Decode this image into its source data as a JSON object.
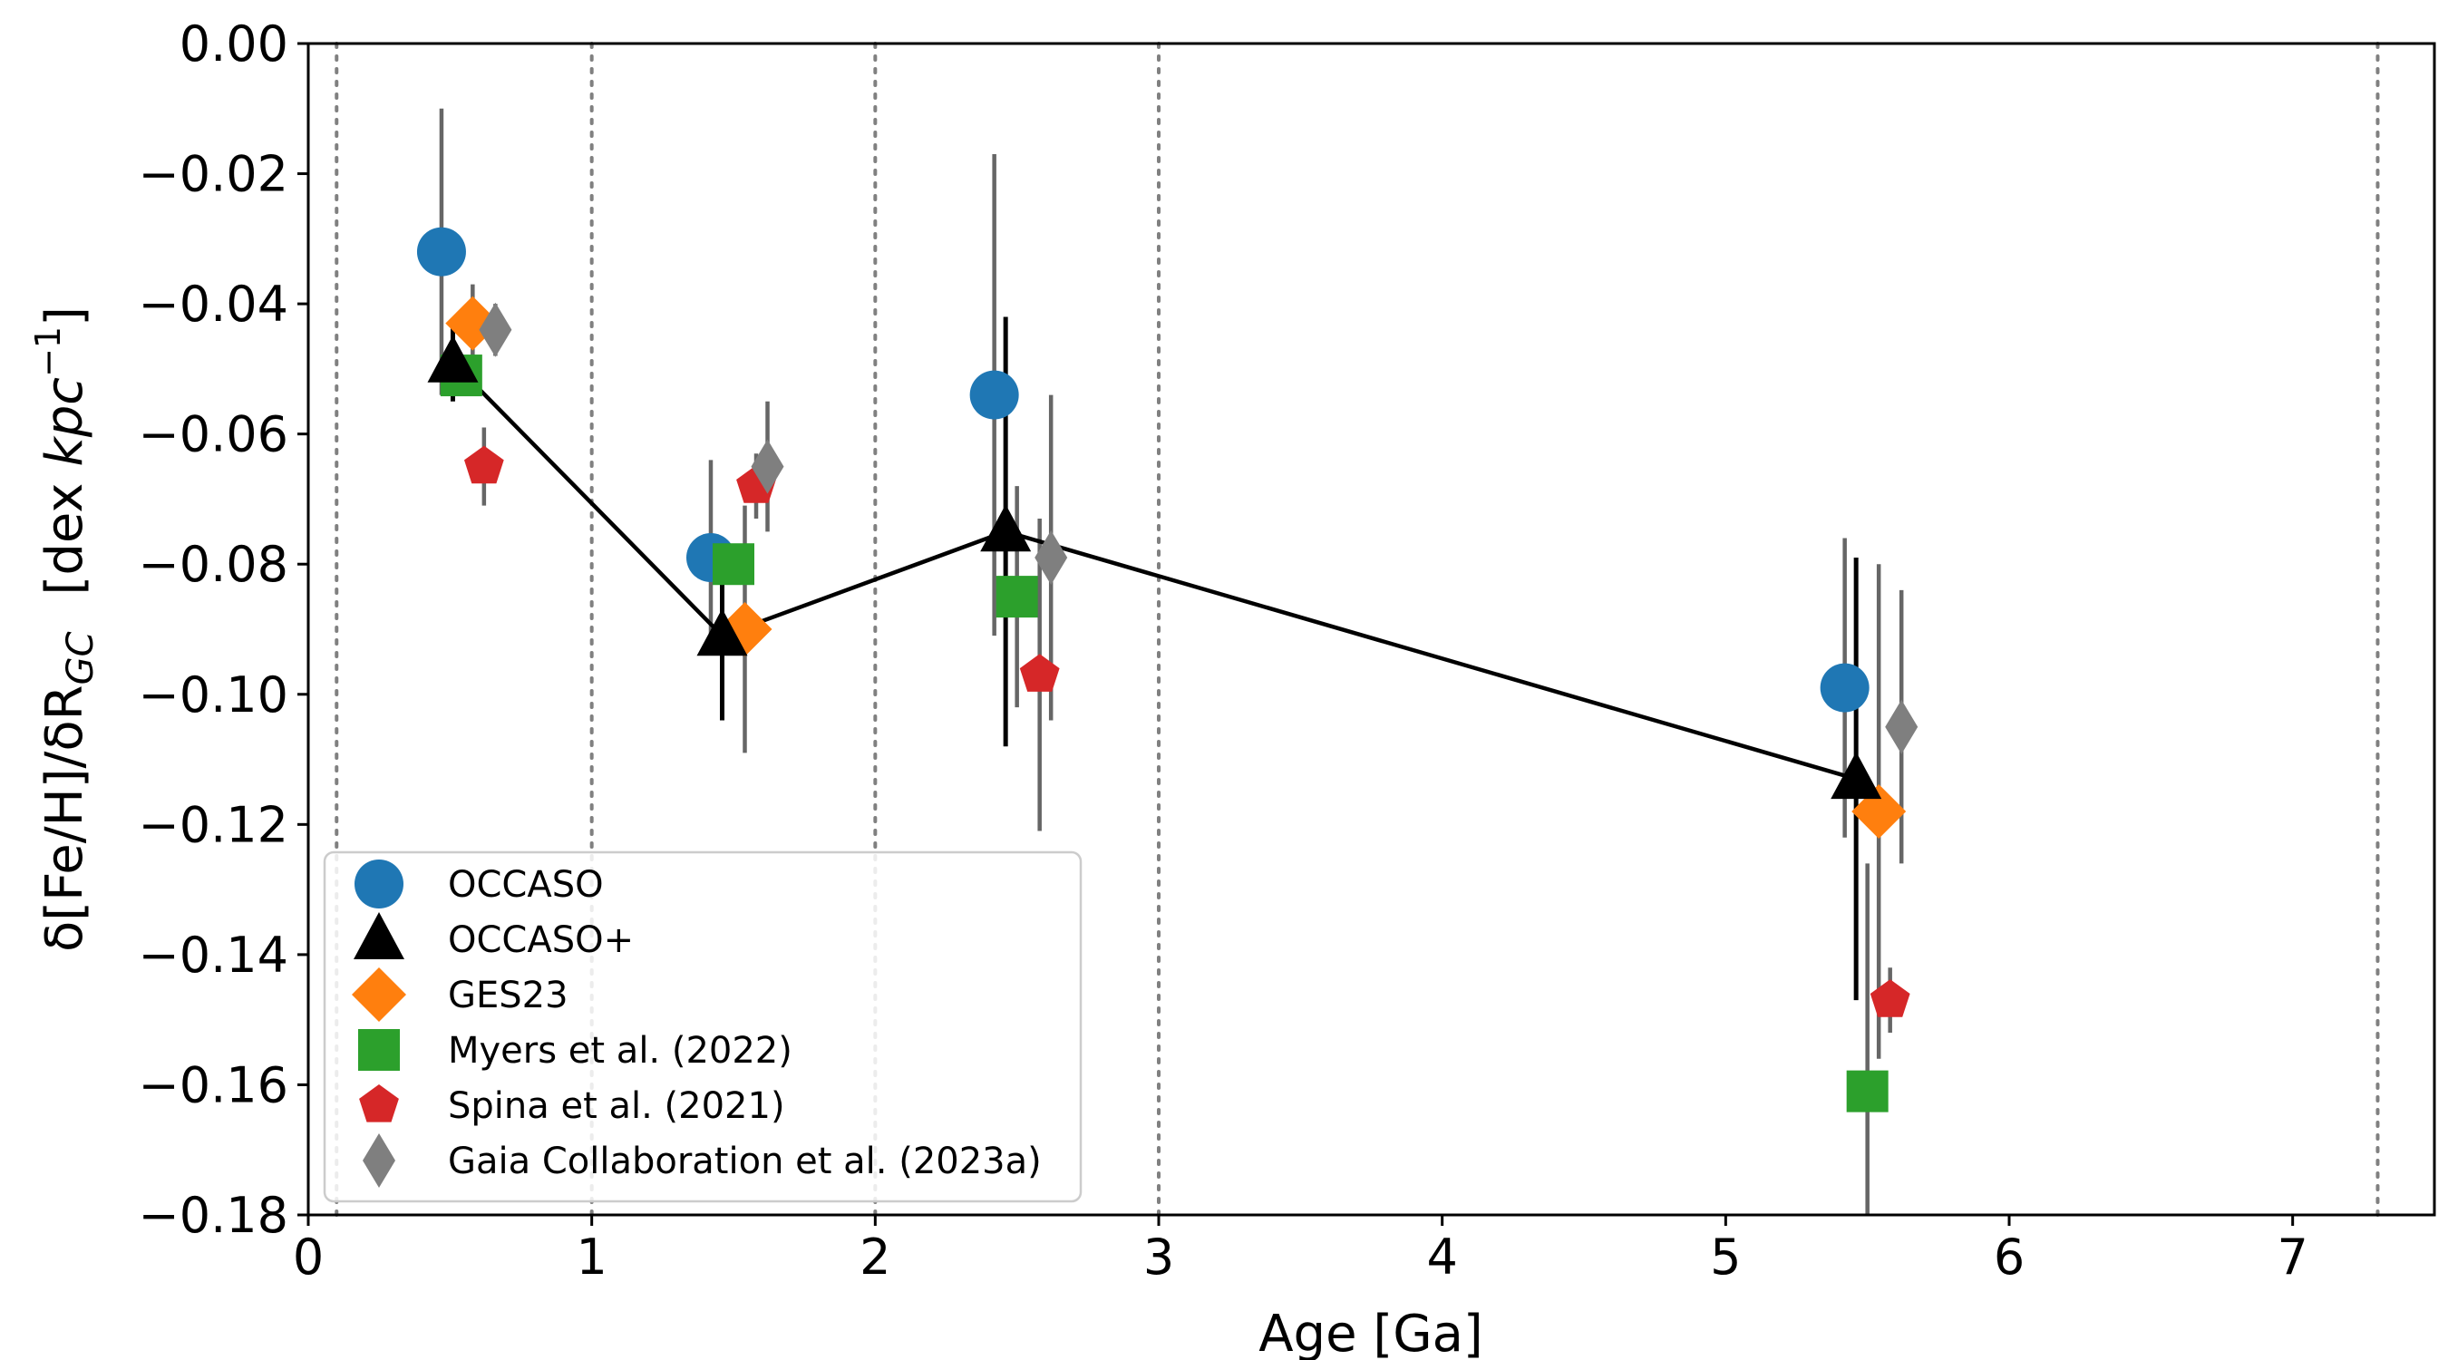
{
  "chart_data": {
    "type": "scatter",
    "xlabel": "Age [Ga]",
    "ylabel": {
      "prefix": "δ[Fe/H]/δR",
      "sub": "GC",
      "unit_open": "[dex  ",
      "unit_italic": "kpc",
      "unit_sup": "−1",
      "unit_close": "]"
    },
    "xlim": [
      0,
      7.5
    ],
    "ylim": [
      -0.18,
      0.0
    ],
    "x_ticks": [
      0,
      1,
      2,
      3,
      4,
      5,
      6,
      7
    ],
    "x_tick_labels": [
      "0",
      "1",
      "2",
      "3",
      "4",
      "5",
      "6",
      "7"
    ],
    "y_ticks": [
      0.0,
      -0.02,
      -0.04,
      -0.06,
      -0.08,
      -0.1,
      -0.12,
      -0.14,
      -0.16,
      -0.18
    ],
    "y_tick_labels": [
      "0.00",
      "−0.02",
      "−0.04",
      "−0.06",
      "−0.08",
      "−0.10",
      "−0.12",
      "−0.14",
      "−0.16",
      "−0.18"
    ],
    "vlines": [
      0.1,
      1.0,
      2.0,
      3.0,
      7.3
    ],
    "legend_position": "lower-left",
    "series": [
      {
        "name": "OCCASO",
        "marker": "circle",
        "color": "#1f77b4",
        "err_color": "#666666",
        "line": false,
        "points": [
          {
            "x": 0.47,
            "y": -0.032,
            "err": 0.022
          },
          {
            "x": 1.42,
            "y": -0.079,
            "err": 0.015
          },
          {
            "x": 2.42,
            "y": -0.054,
            "err": 0.037
          },
          {
            "x": 5.42,
            "y": -0.099,
            "err": 0.023
          }
        ]
      },
      {
        "name": "OCCASO+",
        "marker": "triangle",
        "color": "#000000",
        "err_color": "#000000",
        "line": true,
        "points": [
          {
            "x": 0.51,
            "y": -0.049,
            "err": 0.006
          },
          {
            "x": 1.46,
            "y": -0.091,
            "err": 0.013
          },
          {
            "x": 2.46,
            "y": -0.075,
            "err": 0.033
          },
          {
            "x": 5.46,
            "y": -0.113,
            "err": 0.034
          }
        ]
      },
      {
        "name": "GES23",
        "marker": "diamond",
        "color": "#ff7f0e",
        "err_color": "#666666",
        "line": false,
        "points": [
          {
            "x": 0.58,
            "y": -0.043,
            "err": 0.006
          },
          {
            "x": 1.54,
            "y": -0.09,
            "err": 0.019
          },
          {
            "x": 5.54,
            "y": -0.118,
            "err": 0.038
          }
        ]
      },
      {
        "name": "Myers et al. (2022)",
        "marker": "square",
        "color": "#2ca02c",
        "err_color": "#666666",
        "line": false,
        "points": [
          {
            "x": 0.54,
            "y": -0.051,
            "err": 0.003
          },
          {
            "x": 1.5,
            "y": -0.08,
            "err": 0.002
          },
          {
            "x": 2.5,
            "y": -0.085,
            "err": 0.017
          },
          {
            "x": 5.5,
            "y": -0.161,
            "err": 0.035
          }
        ]
      },
      {
        "name": "Spina et al. (2021)",
        "marker": "pentagon",
        "color": "#d62728",
        "err_color": "#666666",
        "line": false,
        "points": [
          {
            "x": 0.62,
            "y": -0.065,
            "err": 0.006
          },
          {
            "x": 1.58,
            "y": -0.068,
            "err": 0.005
          },
          {
            "x": 2.58,
            "y": -0.097,
            "err": 0.024
          },
          {
            "x": 5.58,
            "y": -0.147,
            "err": 0.005
          }
        ]
      },
      {
        "name": "Gaia Collaboration et al. (2023a)",
        "marker": "thin-diamond",
        "color": "#7f7f7f",
        "err_color": "#666666",
        "line": false,
        "points": [
          {
            "x": 0.66,
            "y": -0.044,
            "err": 0.004
          },
          {
            "x": 1.62,
            "y": -0.065,
            "err": 0.01
          },
          {
            "x": 2.62,
            "y": -0.079,
            "err": 0.025
          },
          {
            "x": 5.62,
            "y": -0.105,
            "err": 0.021
          }
        ]
      }
    ]
  }
}
